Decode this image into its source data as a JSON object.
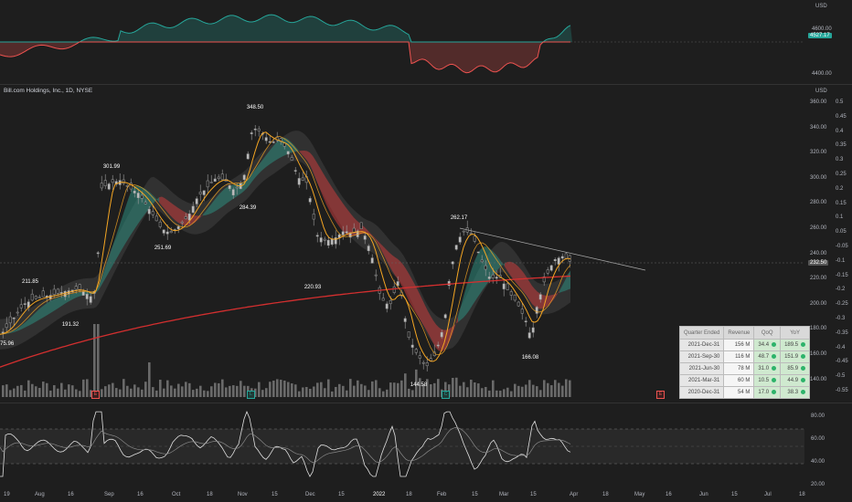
{
  "chart_header": {
    "symbol_line": "Bill.com Holdings, Inc., 1D, NYSE",
    "currency_top": "USD",
    "currency_main": "USD"
  },
  "top_axis": {
    "labels": [
      "4600.00",
      "4527.17",
      "4400.00"
    ],
    "title": "USD"
  },
  "price_axis": [
    "360.00",
    "340.00",
    "320.00",
    "300.00",
    "280.00",
    "260.00",
    "240.00",
    "220.00",
    "200.00",
    "180.00",
    "160.00",
    "140.00"
  ],
  "pct_axis": [
    "0.5",
    "0.45",
    "0.4",
    "0.35",
    "0.3",
    "0.25",
    "0.2",
    "0.15",
    "0.1",
    "0.05",
    "-0.05",
    "-0.1",
    "-0.15",
    "-0.2",
    "-0.25",
    "-0.3",
    "-0.35",
    "-0.4",
    "-0.45",
    "-0.5",
    "-0.55"
  ],
  "current_price": "232.50",
  "annotations": [
    "348.50",
    "301.99",
    "284.39",
    "251.69",
    "211.85",
    "191.32",
    "175.96",
    "220.93",
    "262.17",
    "166.08",
    "144.58"
  ],
  "rsi_axis": [
    "80.00",
    "60.00",
    "40.00",
    "20.00"
  ],
  "x_axis": [
    "19",
    "Aug",
    "16",
    "Sep",
    "16",
    "Oct",
    "18",
    "Nov",
    "15",
    "Dec",
    "15",
    "2022",
    "18",
    "Feb",
    "15",
    "Mar",
    "15",
    "Apr",
    "18",
    "May",
    "16",
    "Jun",
    "15",
    "Jul",
    "18"
  ],
  "event_markers": [
    "E",
    "L",
    "C",
    "E"
  ],
  "financials": {
    "headers": [
      "Quarter Ended",
      "Revenue",
      "QoQ",
      "YoY"
    ],
    "rows": [
      {
        "quarter": "2021-Dec-31",
        "revenue": "156 M",
        "qoq": "34.4",
        "yoy": "189.5"
      },
      {
        "quarter": "2021-Sep-30",
        "revenue": "116 M",
        "qoq": "48.7",
        "yoy": "151.9"
      },
      {
        "quarter": "2021-Jun-30",
        "revenue": "78 M",
        "qoq": "31.0",
        "yoy": "85.9"
      },
      {
        "quarter": "2021-Mar-31",
        "revenue": "60 M",
        "qoq": "10.5",
        "yoy": "44.9"
      },
      {
        "quarter": "2020-Dec-31",
        "revenue": "54 M",
        "qoq": "17.0",
        "yoy": "38.3"
      }
    ]
  },
  "colors": {
    "background": "#1e1e1e",
    "up_line": "#26a69a",
    "down_line": "#ef5350",
    "ma_orange": "#f5a623",
    "ma_red": "#d32f2f",
    "band_teal": "#2e6b63",
    "candle": "#9e9e9e"
  }
}
